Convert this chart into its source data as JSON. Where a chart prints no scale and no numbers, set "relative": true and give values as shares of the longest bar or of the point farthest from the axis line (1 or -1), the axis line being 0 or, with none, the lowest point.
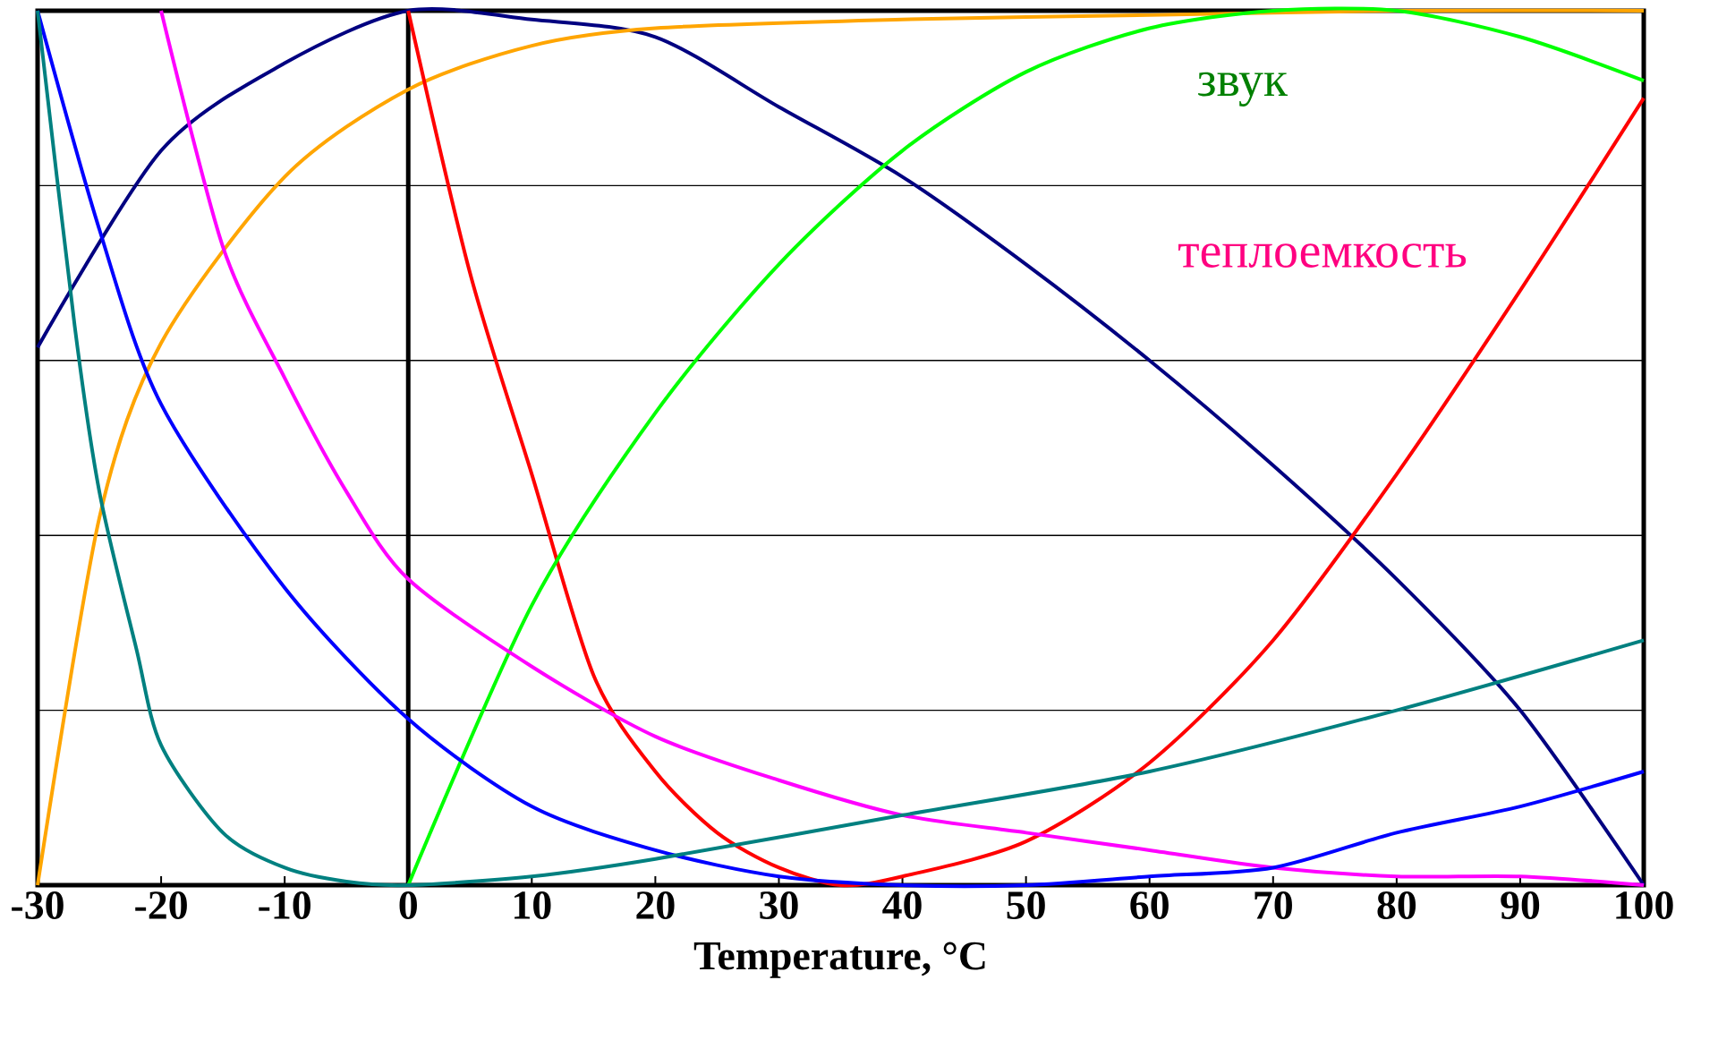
{
  "chart_data": {
    "type": "line",
    "relative": true,
    "xlabel": "Temperature, °C",
    "xlim": [
      -30,
      100
    ],
    "xticks": [
      -30,
      -20,
      -10,
      0,
      10,
      20,
      30,
      40,
      50,
      60,
      70,
      80,
      90,
      100
    ],
    "series": [
      {
        "color": "#000080",
        "x": [
          -30,
          -20,
          -10,
          0,
          10,
          20,
          30,
          40,
          50,
          60,
          70,
          80,
          90,
          100
        ],
        "values": [
          0.615,
          0.84,
          0.94,
          1.0,
          0.99,
          0.97,
          0.89,
          0.81,
          0.71,
          0.6,
          0.48,
          0.35,
          0.2,
          0.0
        ]
      },
      {
        "color": "#ffa500",
        "x": [
          -30,
          -25,
          -20,
          -10,
          0,
          10,
          20,
          40,
          60,
          80,
          100
        ],
        "values": [
          0.0,
          0.42,
          0.62,
          0.81,
          0.91,
          0.96,
          0.98,
          0.99,
          0.995,
          1.0,
          1.0
        ]
      },
      {
        "color": "#ff0000",
        "x": [
          0,
          5,
          10,
          15,
          20,
          25,
          30,
          35,
          40,
          50,
          60,
          70,
          80,
          90,
          100
        ],
        "values": [
          1.0,
          0.7,
          0.47,
          0.24,
          0.13,
          0.06,
          0.02,
          0.0,
          0.01,
          0.05,
          0.14,
          0.28,
          0.47,
          0.68,
          0.9
        ]
      },
      {
        "color": "#00ff00",
        "x": [
          0,
          10,
          20,
          30,
          40,
          50,
          60,
          70,
          80,
          90,
          100
        ],
        "values": [
          0.0,
          0.32,
          0.54,
          0.71,
          0.84,
          0.93,
          0.98,
          1.0,
          1.0,
          0.97,
          0.92
        ]
      },
      {
        "color": "#ff00ff",
        "x": [
          -20,
          -15,
          -10,
          -5,
          0,
          10,
          20,
          30,
          40,
          50,
          60,
          70,
          80,
          90,
          100
        ],
        "values": [
          1.0,
          0.73,
          0.58,
          0.45,
          0.35,
          0.25,
          0.17,
          0.12,
          0.08,
          0.06,
          0.04,
          0.02,
          0.01,
          0.01,
          0.0
        ]
      },
      {
        "color": "#0000ff",
        "x": [
          -30,
          -25,
          -20,
          -10,
          0,
          10,
          20,
          30,
          40,
          50,
          60,
          70,
          80,
          90,
          100
        ],
        "values": [
          1.0,
          0.75,
          0.55,
          0.34,
          0.19,
          0.09,
          0.04,
          0.01,
          0.0,
          0.0,
          0.01,
          0.02,
          0.06,
          0.09,
          0.13
        ]
      },
      {
        "color": "#008080",
        "x": [
          -30,
          -27,
          -25,
          -22,
          -20,
          -15,
          -10,
          -5,
          0,
          10,
          20,
          40,
          60,
          80,
          100
        ],
        "values": [
          1.0,
          0.64,
          0.45,
          0.27,
          0.16,
          0.06,
          0.02,
          0.004,
          0.0,
          0.01,
          0.03,
          0.08,
          0.13,
          0.2,
          0.28
        ]
      }
    ],
    "ref_lines": [
      {
        "axis": "x",
        "value": 0,
        "color": "#000000"
      },
      {
        "axis": "y",
        "value": 0.2,
        "color": "#000000"
      },
      {
        "axis": "y",
        "value": 0.4,
        "color": "#000000"
      },
      {
        "axis": "y",
        "value": 0.6,
        "color": "#000000"
      },
      {
        "axis": "y",
        "value": 0.8,
        "color": "#000000"
      }
    ],
    "annotations": [
      "звук",
      "теплоемкость"
    ]
  }
}
